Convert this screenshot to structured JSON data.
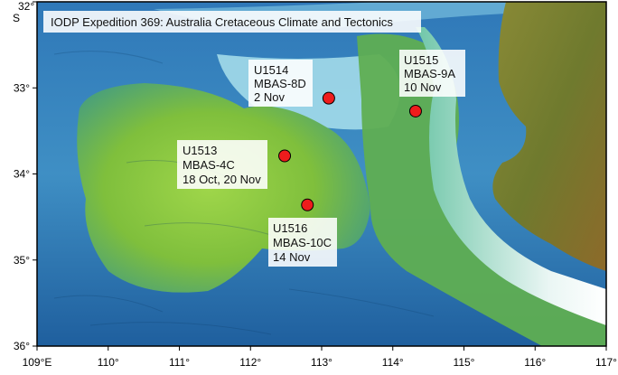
{
  "title": "IODP Expedition 369: Australia Cretaceous Climate and Tectonics",
  "axes": {
    "lat_label_top": "32°",
    "lat_hemisphere": "S",
    "lat_ticks": [
      "33°",
      "34°",
      "35°",
      "36°"
    ],
    "lon_ticks": [
      "109°E",
      "110°",
      "111°",
      "112°",
      "113°",
      "114°",
      "115°",
      "116°",
      "117°"
    ],
    "lon_range": [
      109,
      117
    ],
    "lat_range": [
      -36,
      -32
    ]
  },
  "sites": [
    {
      "id": "U1514",
      "survey": "MBAS-8D",
      "date": "2 Nov",
      "lon": 113.1,
      "lat": -33.12
    },
    {
      "id": "U1515",
      "survey": "MBAS-9A",
      "date": "10 Nov",
      "lon": 114.32,
      "lat": -33.27
    },
    {
      "id": "U1513",
      "survey": "MBAS-4C",
      "date": "18 Oct, 20 Nov",
      "lon": 112.48,
      "lat": -33.79
    },
    {
      "id": "U1516",
      "survey": "MBAS-10C",
      "date": "14 Nov",
      "lon": 112.8,
      "lat": -34.36
    }
  ],
  "colors": {
    "deep_ocean": "#1f5f9e",
    "mid_ocean": "#3f8fc4",
    "shallow": "#8fd6e6",
    "plateau": "#8cc640",
    "land": "#6f7a2e",
    "site_marker": "#ee1c1c"
  }
}
